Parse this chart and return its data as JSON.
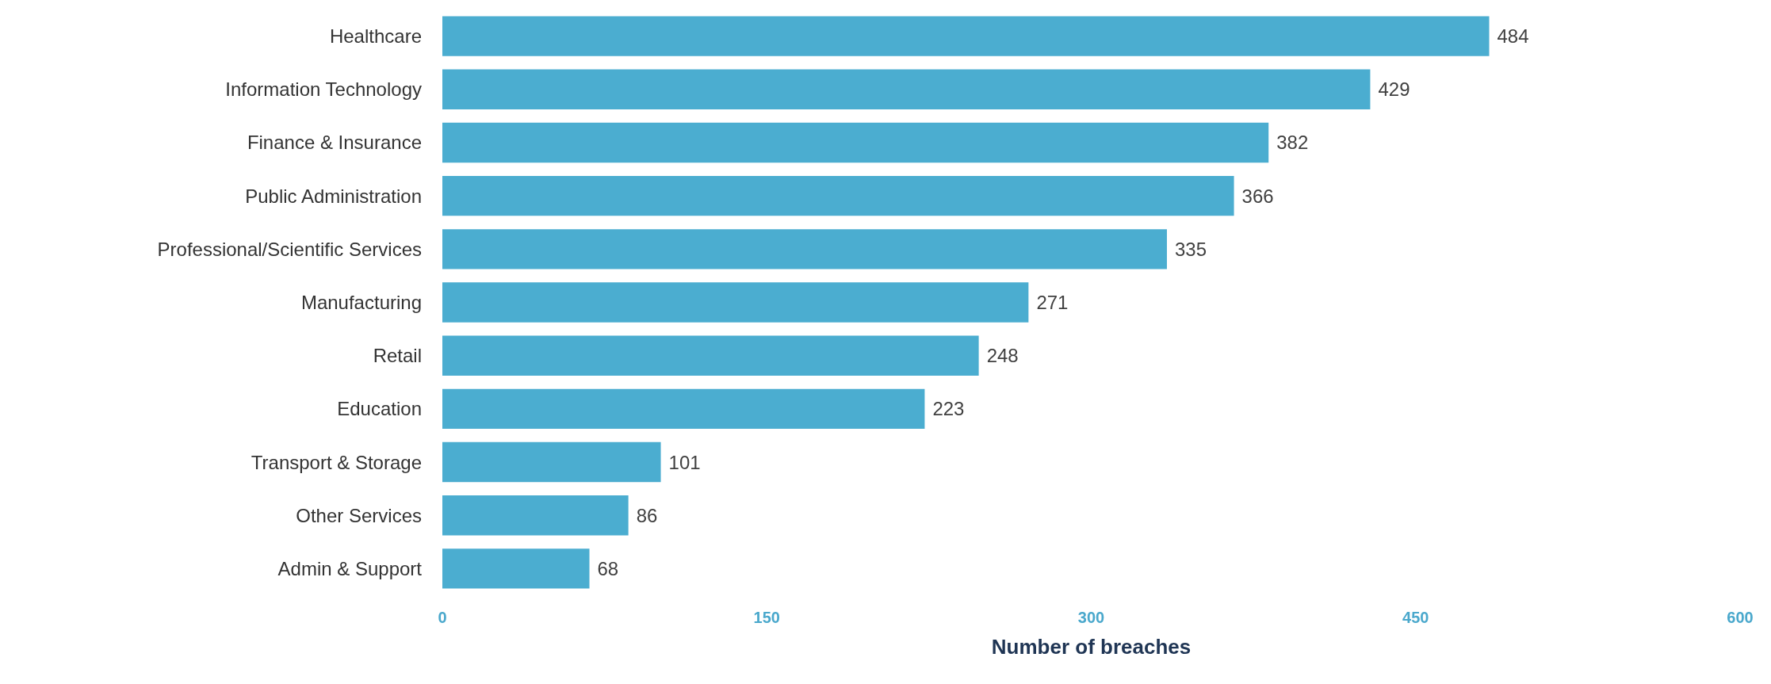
{
  "chart_data": {
    "type": "bar",
    "orientation": "horizontal",
    "xlabel": "Number of breaches",
    "categories": [
      "Healthcare",
      "Information Technology",
      "Finance & Insurance",
      "Public Administration",
      "Professional/Scientific Services",
      "Manufacturing",
      "Retail",
      "Education",
      "Transport & Storage",
      "Other Services",
      "Admin & Support"
    ],
    "values": [
      484,
      429,
      382,
      366,
      335,
      271,
      248,
      223,
      101,
      86,
      68
    ],
    "color": "#4badd0",
    "xlim": [
      0,
      600
    ],
    "xticks": [
      0,
      150,
      300,
      450,
      600
    ],
    "data_labels": true,
    "grid": false
  }
}
